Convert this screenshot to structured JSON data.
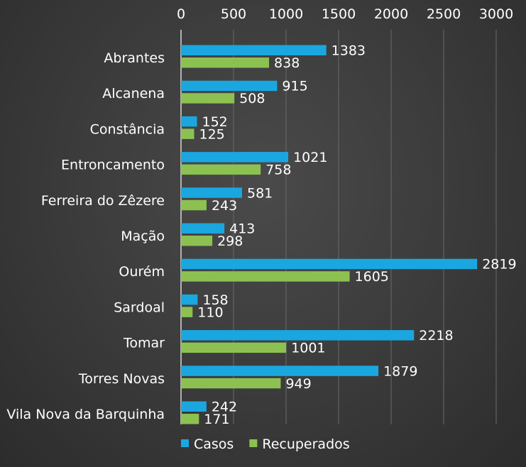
{
  "chart_data": {
    "type": "bar",
    "orientation": "horizontal",
    "title": "",
    "xlabel": "",
    "ylabel": "",
    "xlim": [
      0,
      3000
    ],
    "x_ticks": [
      0,
      500,
      1000,
      1500,
      2000,
      2500,
      3000
    ],
    "x_axis_position": "top",
    "grid": true,
    "legend_position": "bottom-left",
    "categories": [
      "Abrantes",
      "Alcanena",
      "Constância",
      "Entroncamento",
      "Ferreira do Zêzere",
      "Mação",
      "Ourém",
      "Sardoal",
      "Tomar",
      "Torres Novas",
      "Vila Nova da Barquinha"
    ],
    "series": [
      {
        "name": "Casos",
        "color": "#1aa7e0",
        "values": [
          1383,
          915,
          152,
          1021,
          581,
          413,
          2819,
          158,
          2218,
          1879,
          242
        ]
      },
      {
        "name": "Recuperados",
        "color": "#8cc152",
        "values": [
          838,
          508,
          125,
          758,
          243,
          298,
          1605,
          110,
          1001,
          949,
          171
        ]
      }
    ]
  }
}
